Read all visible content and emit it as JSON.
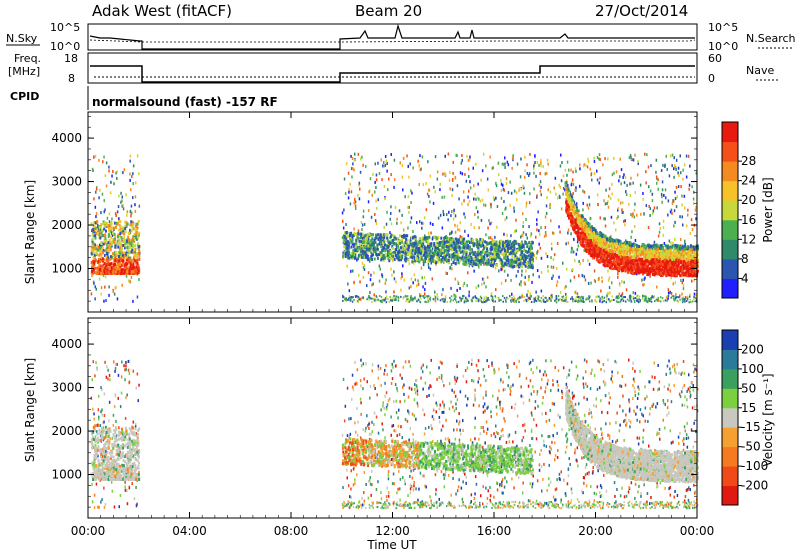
{
  "header": {
    "station": "Adak West (fitACF)",
    "beam": "Beam 20",
    "date": "27/Oct/2014"
  },
  "sky_panel": {
    "left_label": "N.Sky",
    "right_label": "N.Search",
    "left_ticks": [
      "10^5",
      "10^0"
    ],
    "right_ticks": [
      "10^5",
      "10^0"
    ]
  },
  "freq_panel": {
    "left_label_1": "Freq.",
    "left_label_2": "[MHz]",
    "right_label": "Nave",
    "left_ticks": [
      "18",
      "8"
    ],
    "right_ticks": [
      "60",
      "0"
    ]
  },
  "cpid_panel": {
    "label": "CPID",
    "text": "normalsound (fast) -157 RF"
  },
  "chart_data": [
    {
      "type": "heatmap",
      "title": "",
      "xlabel": "",
      "ylabel": "Slant Range [km]",
      "x_hours": [
        0,
        24
      ],
      "ylim": [
        0,
        4600
      ],
      "yticks": [
        1000,
        2000,
        3000,
        4000
      ],
      "colorbar": {
        "label": "Power [dB]",
        "ticks": [
          "4",
          "8",
          "12",
          "16",
          "20",
          "24",
          "28"
        ],
        "colors": [
          "#1f1fff",
          "#2a55b0",
          "#2f8a6a",
          "#4cb050",
          "#c7d93a",
          "#f5c22a",
          "#f58a20",
          "#f5501a",
          "#e81a10"
        ]
      }
    },
    {
      "type": "heatmap",
      "title": "",
      "xlabel": "Time UT",
      "ylabel": "Slant Range [km]",
      "x_hours": [
        0,
        24
      ],
      "ylim": [
        0,
        4600
      ],
      "yticks": [
        1000,
        2000,
        3000,
        4000
      ],
      "xtick_labels": [
        "00:00",
        "04:00",
        "08:00",
        "12:00",
        "16:00",
        "20:00",
        "00:00"
      ],
      "colorbar": {
        "label": "Velocity [m s⁻¹]",
        "ticks": [
          "200",
          "100",
          "50",
          "15",
          "-15",
          "-50",
          "-100",
          "-200"
        ],
        "colors": [
          "#1a3fb0",
          "#2a7a9a",
          "#3aa060",
          "#7cd040",
          "#c8c8c0",
          "#f5a030",
          "#f57a20",
          "#f04a18",
          "#e01a10"
        ]
      }
    }
  ]
}
